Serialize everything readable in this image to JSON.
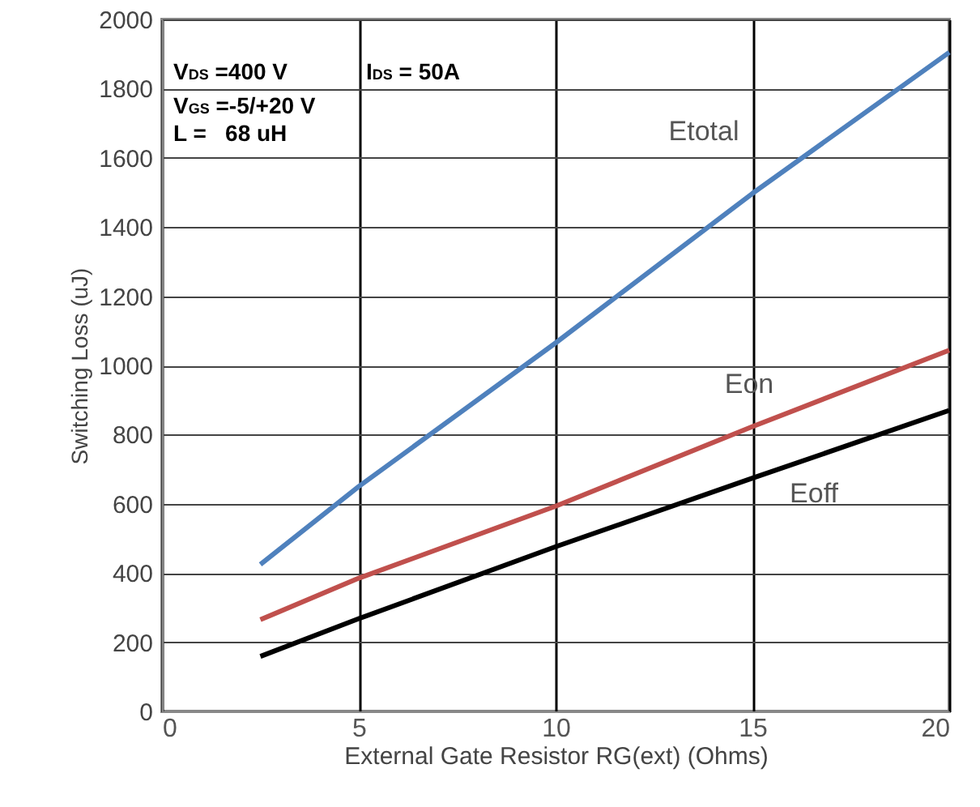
{
  "chart_data": {
    "type": "line",
    "xlabel": "External Gate Resistor RG(ext) (Ohms)",
    "ylabel": "Switching Loss (uJ)",
    "x": [
      2.5,
      5,
      10,
      15,
      20
    ],
    "series": [
      {
        "name": "Etotal",
        "color": "#4f81bd",
        "values": [
          425,
          650,
          1065,
          1497,
          1905
        ]
      },
      {
        "name": "Eon",
        "color": "#c0504d",
        "values": [
          265,
          385,
          593,
          823,
          1044
        ]
      },
      {
        "name": "Eoff",
        "color": "#000000",
        "values": [
          159,
          268,
          476,
          674,
          870
        ]
      }
    ],
    "xlim": [
      0,
      20
    ],
    "xticks": [
      0,
      5,
      10,
      15,
      20
    ],
    "ylim": [
      0,
      2000
    ],
    "yticks": [
      0,
      200,
      400,
      600,
      800,
      1000,
      1200,
      1400,
      1600,
      1800,
      2000
    ],
    "grid": true,
    "marker": "none",
    "line_style": "solid",
    "annotations": [
      "V$_{DS}$ =400 V",
      "I$_{DS}$ = 50A",
      "V$_{GS}$ =-5/+20 V",
      "L =   68 uH"
    ]
  }
}
